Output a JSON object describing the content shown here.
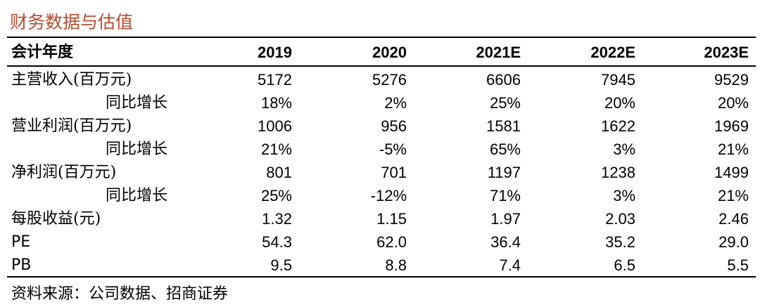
{
  "title": "财务数据与估值",
  "table": {
    "header": [
      "会计年度",
      "2019",
      "2020",
      "2021E",
      "2022E",
      "2023E"
    ],
    "rows": [
      [
        "主营收入(百万元)",
        "5172",
        "5276",
        "6606",
        "7945",
        "9529"
      ],
      [
        "同比增长",
        "18%",
        "2%",
        "25%",
        "20%",
        "20%"
      ],
      [
        "营业利润(百万元)",
        "1006",
        "956",
        "1581",
        "1622",
        "1969"
      ],
      [
        "同比增长",
        "21%",
        "-5%",
        "65%",
        "3%",
        "21%"
      ],
      [
        "净利润(百万元)",
        "801",
        "701",
        "1197",
        "1238",
        "1499"
      ],
      [
        "同比增长",
        "25%",
        "-12%",
        "71%",
        "3%",
        "21%"
      ],
      [
        "每股收益(元)",
        "1.32",
        "1.15",
        "1.97",
        "2.03",
        "2.46"
      ],
      [
        "PE",
        "54.3",
        "62.0",
        "36.4",
        "35.2",
        "29.0"
      ],
      [
        "PB",
        "9.5",
        "8.8",
        "7.4",
        "6.5",
        "5.5"
      ]
    ]
  },
  "source": "资料来源：公司数据、招商证券"
}
